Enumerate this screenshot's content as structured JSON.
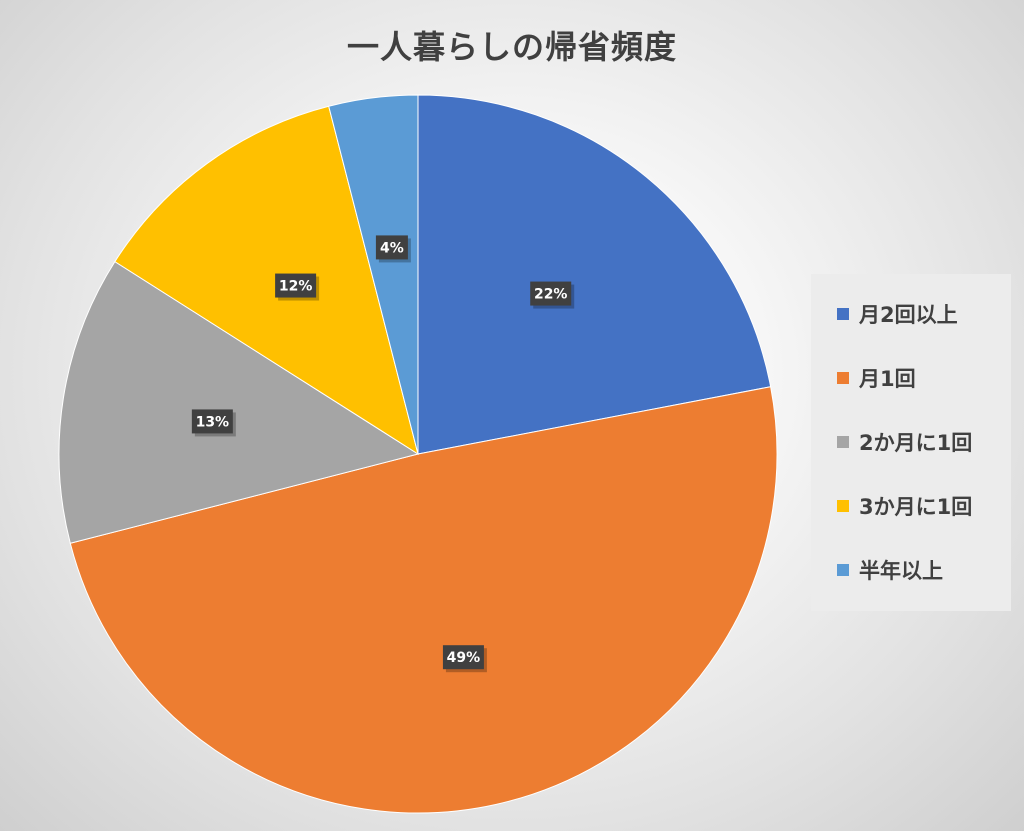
{
  "chart_data": {
    "type": "pie",
    "title": "一人暮らしの帰省頻度",
    "categories": [
      "月2回以上",
      "月1回",
      "2か月に1回",
      "3か月に1回",
      "半年以上"
    ],
    "values": [
      22,
      49,
      13,
      12,
      4
    ],
    "labels": [
      "22%",
      "49%",
      "13%",
      "12%",
      "4%"
    ],
    "colors": [
      "#4472C4",
      "#ED7D31",
      "#A5A5A5",
      "#FFC000",
      "#5B9BD5"
    ],
    "legend_position": "right"
  }
}
